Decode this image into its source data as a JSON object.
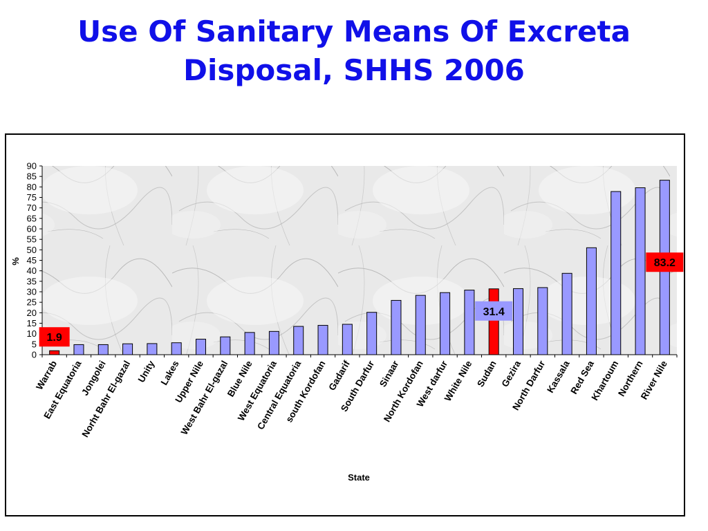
{
  "slide": {
    "title_line1": "Use Of Sanitary Means Of Excreta",
    "title_line2": "Disposal, SHHS 2006"
  },
  "chart_data": {
    "type": "bar",
    "title": "",
    "xlabel": "State",
    "ylabel": "%",
    "ylim": [
      0,
      90
    ],
    "yticks": [
      0,
      5,
      10,
      15,
      20,
      25,
      30,
      35,
      40,
      45,
      50,
      55,
      60,
      65,
      70,
      75,
      80,
      85,
      90
    ],
    "grid": false,
    "legend": "none",
    "categories": [
      "Warrab",
      "East Equatoria",
      "Jongolei",
      "Norht Bahr El-gazal",
      "Unity",
      "Lakes",
      "Upper Nile",
      "West Bahr El-gazal",
      "Blue Nile",
      "West Equatoria",
      "Central Equatoria",
      "south Kordofan",
      "Gadarif",
      "South Darfur",
      "Sinaar",
      "North Kordofan",
      "West darfur",
      "White Nile",
      "Sudan",
      "Gezira",
      "North Darfur",
      "Kassala",
      "Red Sea",
      "Khartoum",
      "Northern",
      "River Nile"
    ],
    "values": [
      1.9,
      4.8,
      4.8,
      5.2,
      5.3,
      5.7,
      7.4,
      8.5,
      10.6,
      11.1,
      13.5,
      14.0,
      14.5,
      20.2,
      25.9,
      28.3,
      29.6,
      30.8,
      31.4,
      31.5,
      32.0,
      38.8,
      51.0,
      77.8,
      79.6,
      83.2
    ],
    "colors": {
      "default_bar": "#9999ff",
      "highlight_bar": "#ff0000",
      "bar_outline": "#000000",
      "title": "#1010e8",
      "callout_red": "#ff0000",
      "callout_blue": "#9999ff"
    },
    "highlighted": [
      "Warrab",
      "Sudan"
    ],
    "callouts": [
      {
        "label": "1.9",
        "category": "Warrab",
        "color": "red"
      },
      {
        "label": "31.4",
        "category": "Sudan",
        "color": "blue"
      },
      {
        "label": "83.2",
        "category": "River Nile",
        "color": "red"
      }
    ]
  }
}
